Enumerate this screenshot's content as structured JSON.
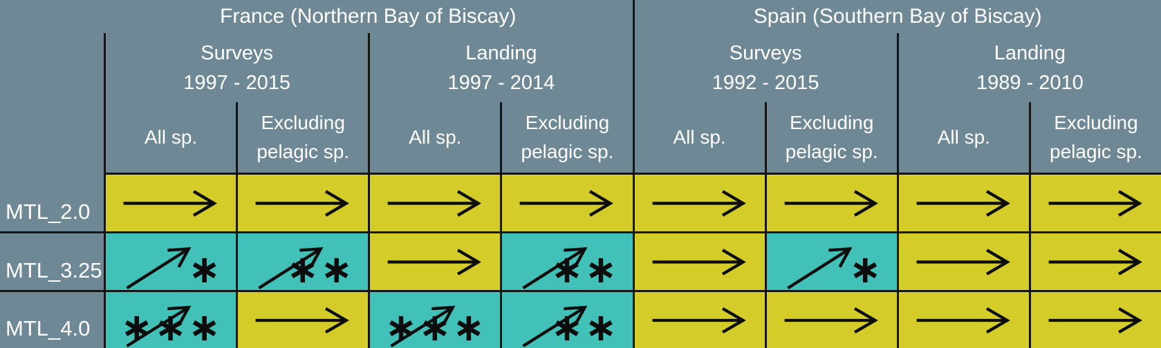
{
  "colors": {
    "background": "#6e8995",
    "grid_line": "#161616",
    "header_text": "#ffffff",
    "stable_cell": "#d3cc29",
    "increase_cell": "#41c1b7",
    "arrow": "#0d0d0d"
  },
  "chart_data": {
    "type": "table",
    "regions": [
      {
        "label": "France (Northern Bay of Biscay)",
        "groups": [
          {
            "label": "Surveys",
            "period": "1997 - 2015"
          },
          {
            "label": "Landing",
            "period": "1997 - 2014"
          }
        ]
      },
      {
        "label": "Spain (Southern Bay of Biscay)",
        "groups": [
          {
            "label": "Surveys",
            "period": "1992 - 2015"
          },
          {
            "label": "Landing",
            "period": "1989 - 2010"
          }
        ]
      }
    ],
    "species_columns": [
      "All sp.",
      "Excluding pelagic sp."
    ],
    "row_labels": [
      "MTL_2.0",
      "MTL_3.25",
      "MTL_4.0"
    ],
    "cell_symbols": {
      "stable": "→",
      "increase": "↗"
    },
    "cells": [
      [
        {
          "trend": "stable",
          "significance": ""
        },
        {
          "trend": "stable",
          "significance": ""
        },
        {
          "trend": "stable",
          "significance": ""
        },
        {
          "trend": "stable",
          "significance": ""
        },
        {
          "trend": "stable",
          "significance": ""
        },
        {
          "trend": "stable",
          "significance": ""
        },
        {
          "trend": "stable",
          "significance": ""
        },
        {
          "trend": "stable",
          "significance": ""
        }
      ],
      [
        {
          "trend": "increase",
          "significance": "*"
        },
        {
          "trend": "increase",
          "significance": "**"
        },
        {
          "trend": "stable",
          "significance": ""
        },
        {
          "trend": "increase",
          "significance": "**"
        },
        {
          "trend": "stable",
          "significance": ""
        },
        {
          "trend": "increase",
          "significance": "*"
        },
        {
          "trend": "stable",
          "significance": ""
        },
        {
          "trend": "stable",
          "significance": ""
        }
      ],
      [
        {
          "trend": "increase",
          "significance": "***"
        },
        {
          "trend": "stable",
          "significance": ""
        },
        {
          "trend": "increase",
          "significance": "***"
        },
        {
          "trend": "increase",
          "significance": "**"
        },
        {
          "trend": "stable",
          "significance": ""
        },
        {
          "trend": "stable",
          "significance": ""
        },
        {
          "trend": "stable",
          "significance": ""
        },
        {
          "trend": "stable",
          "significance": ""
        }
      ]
    ]
  }
}
